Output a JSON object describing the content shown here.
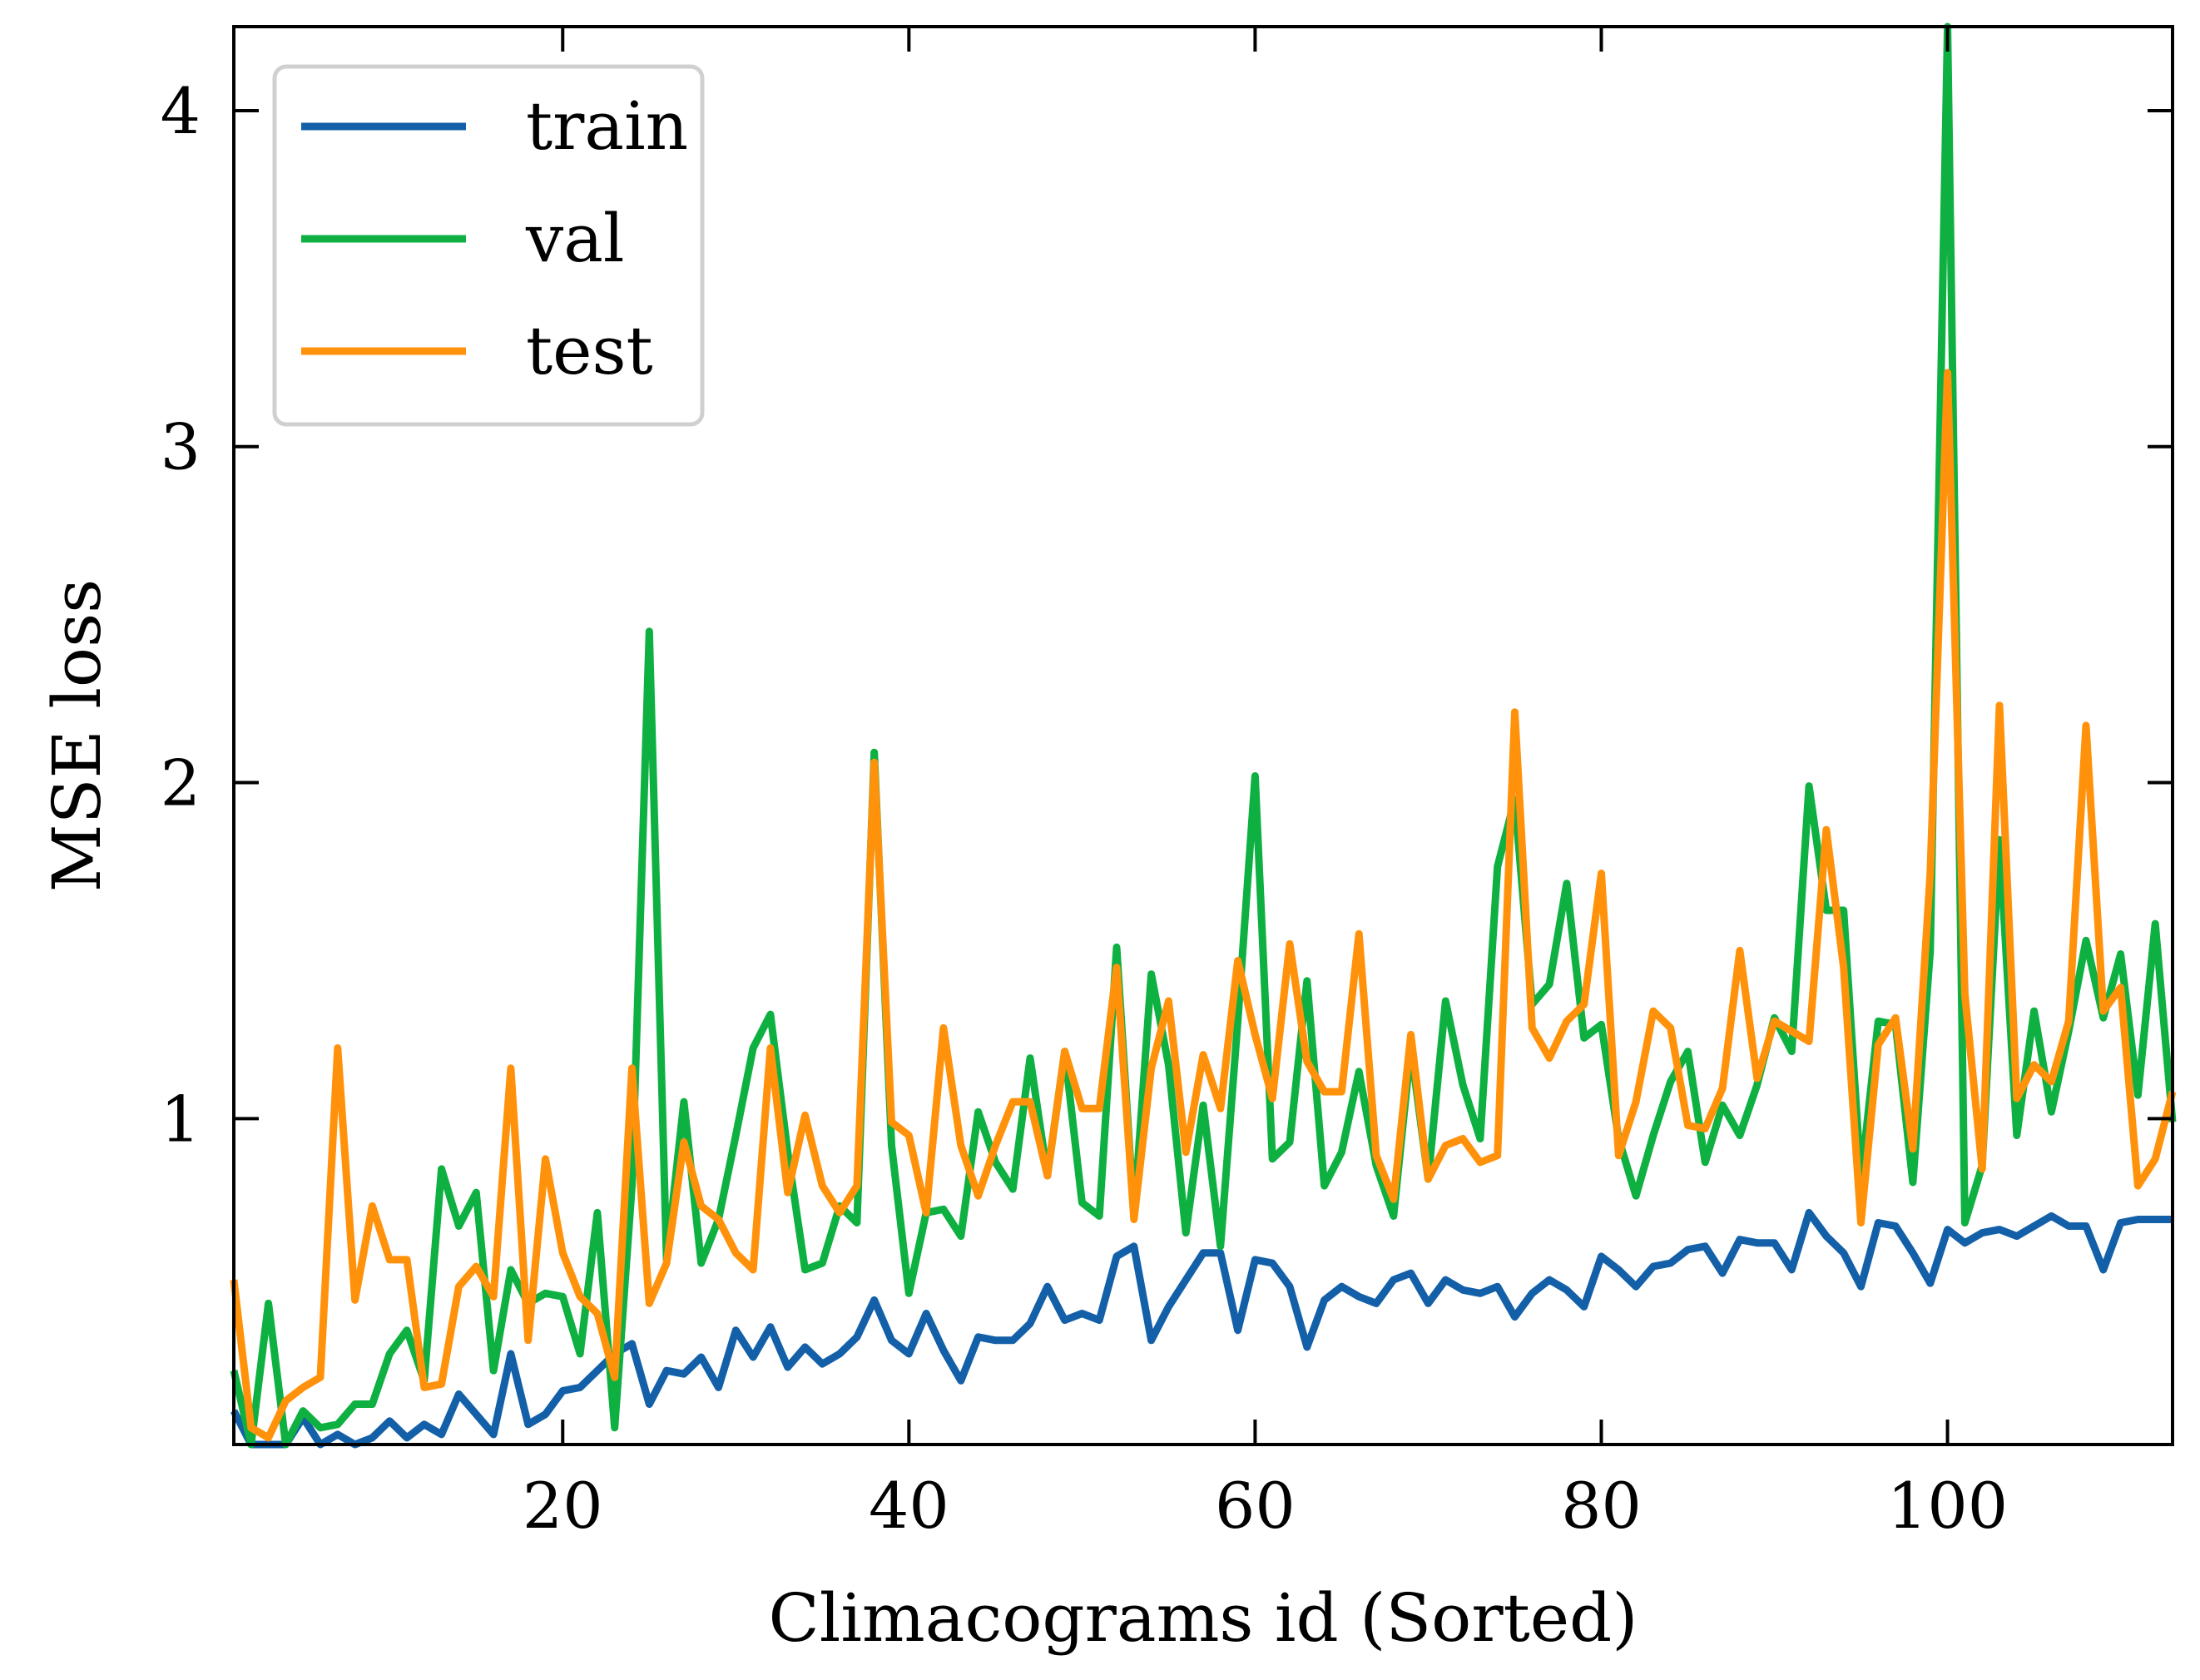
{
  "chart_data": {
    "type": "line",
    "title": "",
    "xlabel": "Climacograms id (Sorted)",
    "ylabel": "MSE loss",
    "xlim": [
      1,
      113
    ],
    "ylim": [
      0.03,
      4.25
    ],
    "xticks": [
      20,
      40,
      60,
      80,
      100
    ],
    "yticks": [
      1,
      2,
      3,
      4
    ],
    "xtick_labels": [
      "20",
      "40",
      "60",
      "80",
      "100"
    ],
    "ytick_labels": [
      "1",
      "2",
      "3",
      "4"
    ],
    "grid": false,
    "legend_position": "top-left",
    "x": [
      1,
      2,
      3,
      4,
      5,
      6,
      7,
      8,
      9,
      10,
      11,
      12,
      13,
      14,
      15,
      16,
      17,
      18,
      19,
      20,
      21,
      22,
      23,
      24,
      25,
      26,
      27,
      28,
      29,
      30,
      31,
      32,
      33,
      34,
      35,
      36,
      37,
      38,
      39,
      40,
      41,
      42,
      43,
      44,
      45,
      46,
      47,
      48,
      49,
      50,
      51,
      52,
      53,
      54,
      55,
      56,
      57,
      58,
      59,
      60,
      61,
      62,
      63,
      64,
      65,
      66,
      67,
      68,
      69,
      70,
      71,
      72,
      73,
      74,
      75,
      76,
      77,
      78,
      79,
      80,
      81,
      82,
      83,
      84,
      85,
      86,
      87,
      88,
      89,
      90,
      91,
      92,
      93,
      94,
      95,
      96,
      97,
      98,
      99,
      100,
      101,
      102,
      103,
      104,
      105,
      106,
      107,
      108,
      109,
      110,
      111,
      112,
      113
    ],
    "series": [
      {
        "name": "train",
        "color": "#1360a8",
        "values": [
          0.13,
          0.03,
          0.03,
          0.03,
          0.11,
          0.03,
          0.06,
          0.03,
          0.05,
          0.1,
          0.05,
          0.09,
          0.06,
          0.18,
          0.12,
          0.06,
          0.3,
          0.09,
          0.12,
          0.19,
          0.2,
          0.25,
          0.3,
          0.33,
          0.15,
          0.25,
          0.24,
          0.29,
          0.2,
          0.37,
          0.29,
          0.38,
          0.26,
          0.32,
          0.27,
          0.3,
          0.35,
          0.46,
          0.34,
          0.3,
          0.42,
          0.31,
          0.22,
          0.35,
          0.34,
          0.34,
          0.39,
          0.5,
          0.4,
          0.42,
          0.4,
          0.59,
          0.62,
          0.34,
          0.44,
          0.52,
          0.6,
          0.6,
          0.37,
          0.58,
          0.57,
          0.5,
          0.32,
          0.46,
          0.5,
          0.47,
          0.45,
          0.52,
          0.54,
          0.45,
          0.52,
          0.49,
          0.48,
          0.5,
          0.41,
          0.48,
          0.52,
          0.49,
          0.44,
          0.59,
          0.55,
          0.5,
          0.56,
          0.57,
          0.61,
          0.62,
          0.54,
          0.64,
          0.63,
          0.63,
          0.55,
          0.72,
          0.65,
          0.6,
          0.5,
          0.69,
          0.68,
          0.6,
          0.51,
          0.67,
          0.63,
          0.66,
          0.67,
          0.65,
          0.68,
          0.71,
          0.68,
          0.68,
          0.55,
          0.69,
          0.7,
          0.7,
          0.7
        ]
      },
      {
        "name": "val",
        "color": "#0eb041",
        "values": [
          0.25,
          0.03,
          0.45,
          0.03,
          0.13,
          0.08,
          0.09,
          0.15,
          0.15,
          0.3,
          0.37,
          0.22,
          0.85,
          0.68,
          0.78,
          0.25,
          0.55,
          0.45,
          0.48,
          0.47,
          0.3,
          0.72,
          0.08,
          0.8,
          2.45,
          0.58,
          1.05,
          0.57,
          0.7,
          0.95,
          1.21,
          1.31,
          0.9,
          0.55,
          0.57,
          0.74,
          0.69,
          2.09,
          0.92,
          0.48,
          0.72,
          0.73,
          0.65,
          1.02,
          0.87,
          0.79,
          1.18,
          0.83,
          1.2,
          0.75,
          0.71,
          1.51,
          0.71,
          1.43,
          1.16,
          0.66,
          1.04,
          0.62,
          1.29,
          2.02,
          0.88,
          0.93,
          1.41,
          0.8,
          0.9,
          1.14,
          0.86,
          0.71,
          1.21,
          0.82,
          1.35,
          1.1,
          0.94,
          1.75,
          1.95,
          1.34,
          1.4,
          1.7,
          1.24,
          1.28,
          0.94,
          0.77,
          0.95,
          1.11,
          1.2,
          0.87,
          1.04,
          0.95,
          1.1,
          1.3,
          1.2,
          1.99,
          1.62,
          1.62,
          0.82,
          1.29,
          1.28,
          0.81,
          1.5,
          4.25,
          0.69,
          0.86,
          1.83,
          0.95,
          1.32,
          1.02,
          1.26,
          1.53,
          1.3,
          1.49,
          1.07,
          1.58,
          0.99
        ]
      },
      {
        "name": "test",
        "color": "#ff920a",
        "values": [
          0.52,
          0.08,
          0.05,
          0.16,
          0.2,
          0.23,
          1.21,
          0.46,
          0.74,
          0.58,
          0.58,
          0.2,
          0.21,
          0.5,
          0.56,
          0.47,
          1.15,
          0.34,
          0.88,
          0.6,
          0.47,
          0.42,
          0.23,
          1.15,
          0.45,
          0.57,
          0.93,
          0.74,
          0.7,
          0.6,
          0.55,
          1.21,
          0.78,
          1.01,
          0.8,
          0.72,
          0.8,
          2.06,
          0.99,
          0.95,
          0.72,
          1.27,
          0.92,
          0.77,
          0.92,
          1.05,
          1.05,
          0.83,
          1.2,
          1.03,
          1.03,
          1.45,
          0.7,
          1.15,
          1.35,
          0.9,
          1.19,
          1.03,
          1.47,
          1.25,
          1.06,
          1.52,
          1.17,
          1.08,
          1.08,
          1.55,
          0.89,
          0.76,
          1.25,
          0.82,
          0.92,
          0.94,
          0.87,
          0.89,
          2.21,
          1.27,
          1.18,
          1.29,
          1.34,
          1.73,
          0.89,
          1.05,
          1.32,
          1.27,
          0.98,
          0.97,
          1.09,
          1.5,
          1.12,
          1.29,
          1.26,
          1.23,
          1.86,
          1.45,
          0.69,
          1.22,
          1.3,
          0.91,
          1.73,
          3.22,
          1.37,
          0.85,
          2.23,
          1.06,
          1.16,
          1.11,
          1.29,
          2.17,
          1.32,
          1.39,
          0.8,
          0.88,
          1.08
        ]
      }
    ]
  }
}
